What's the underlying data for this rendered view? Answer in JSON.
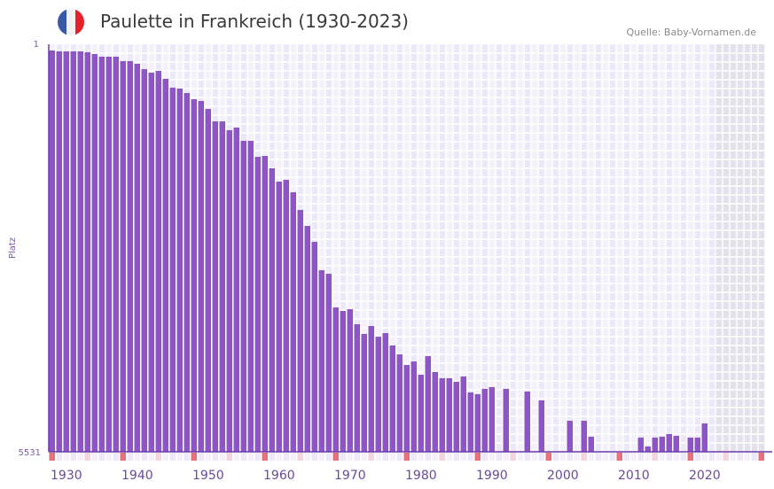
{
  "header": {
    "title": "Paulette in Frankreich (1930-2023)",
    "source": "Quelle: Baby-Vornamen.de",
    "flag_colors": [
      "#3a58a8",
      "#f2f2f2",
      "#e8202a"
    ]
  },
  "colors": {
    "bar": "#8e55c7",
    "axis": "#6a3aa8",
    "grid_a": "#f4f1fb",
    "grid_b": "#ede8f8",
    "future": "#e4e0ec",
    "decade_marker": "#e8727a",
    "half_decade_marker": "#f5d5dd"
  },
  "chart_data": {
    "type": "bar",
    "title": "Paulette in Frankreich (1930-2023)",
    "xlabel": "",
    "ylabel": "Platz",
    "y_reversed": true,
    "ylim": [
      1,
      5531
    ],
    "y_tick_labels": [
      "1",
      "5531"
    ],
    "xlim": [
      1930,
      2030
    ],
    "x_tick_labels": [
      "1930",
      "1940",
      "1950",
      "1960",
      "1970",
      "1980",
      "1990",
      "2000",
      "2010",
      "2020"
    ],
    "future_from": 2024,
    "years": [
      1930,
      1931,
      1932,
      1933,
      1934,
      1935,
      1936,
      1937,
      1938,
      1939,
      1940,
      1941,
      1942,
      1943,
      1944,
      1945,
      1946,
      1947,
      1948,
      1949,
      1950,
      1951,
      1952,
      1953,
      1954,
      1955,
      1956,
      1957,
      1958,
      1959,
      1960,
      1961,
      1962,
      1963,
      1964,
      1965,
      1966,
      1967,
      1968,
      1969,
      1970,
      1971,
      1972,
      1973,
      1974,
      1975,
      1976,
      1977,
      1978,
      1979,
      1980,
      1981,
      1982,
      1983,
      1984,
      1985,
      1986,
      1987,
      1988,
      1989,
      1990,
      1991,
      1992,
      1993,
      1994,
      1995,
      1996,
      1997,
      1998,
      1999,
      2000,
      2001,
      2002,
      2003,
      2004,
      2005,
      2006,
      2007,
      2008,
      2009,
      2010,
      2011,
      2012,
      2013,
      2014,
      2015,
      2016,
      2017,
      2018,
      2019,
      2020,
      2021,
      2022,
      2023
    ],
    "values": [
      85,
      97,
      97,
      97,
      97,
      109,
      133,
      169,
      169,
      169,
      229,
      229,
      265,
      338,
      386,
      362,
      470,
      590,
      602,
      662,
      746,
      770,
      878,
      1047,
      1047,
      1167,
      1131,
      1311,
      1311,
      1528,
      1516,
      1684,
      1864,
      1840,
      2009,
      2249,
      2466,
      2682,
      3067,
      3115,
      3572,
      3620,
      3596,
      3800,
      3932,
      3824,
      3969,
      3920,
      4088,
      4209,
      4353,
      4305,
      4485,
      4233,
      4449,
      4533,
      4533,
      4581,
      4509,
      4725,
      4749,
      4677,
      4653,
      null,
      4677,
      null,
      null,
      4713,
      null,
      4833,
      null,
      null,
      null,
      5110,
      null,
      5110,
      5326,
      null,
      null,
      null,
      null,
      null,
      null,
      5338,
      5458,
      5338,
      5326,
      5290,
      5314,
      null,
      5338,
      5338,
      5146,
      null
    ]
  }
}
